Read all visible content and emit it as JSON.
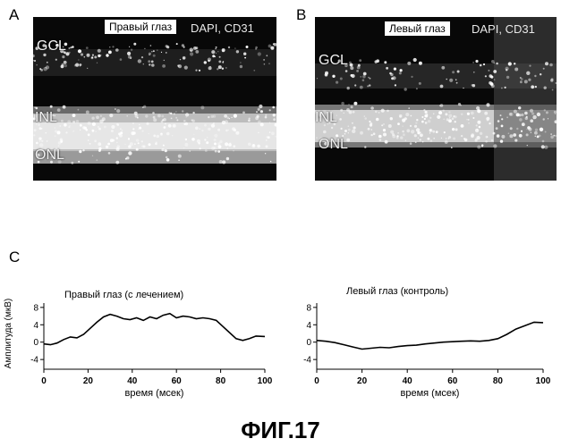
{
  "panels": {
    "A": {
      "letter": "A",
      "eye_label": "Правый глаз",
      "stain_label": "DAPI, CD31",
      "layers": [
        "GCL",
        "INL",
        "ONL"
      ]
    },
    "B": {
      "letter": "B",
      "eye_label": "Левый глаз",
      "stain_label": "DAPI, CD31",
      "layers": [
        "GCL",
        "INL",
        "ONL"
      ]
    },
    "C": {
      "letter": "C"
    }
  },
  "chart_data": [
    {
      "type": "line",
      "title": "Правый глаз (с лечением)",
      "xlabel": "время (мсек)",
      "ylabel": "Амплитуда (мкВ)",
      "xlim": [
        0,
        100
      ],
      "ylim": [
        -5,
        9
      ],
      "xticks": [
        0,
        20,
        40,
        60,
        80,
        100
      ],
      "yticks": [
        8,
        4,
        0,
        -4
      ],
      "series": [
        {
          "x": [
            0,
            3,
            6,
            9,
            12,
            15,
            18,
            21,
            24,
            27,
            30,
            33,
            36,
            39,
            42,
            45,
            48,
            51,
            54,
            57,
            60,
            63,
            66,
            69,
            72,
            75,
            78,
            81,
            84,
            87,
            90,
            93,
            96,
            100
          ],
          "values": [
            -0.4,
            -0.6,
            -0.2,
            0.6,
            1.2,
            1.0,
            1.8,
            3.2,
            4.6,
            5.8,
            6.4,
            6.0,
            5.4,
            5.2,
            5.6,
            5.0,
            5.8,
            5.4,
            6.2,
            6.6,
            5.6,
            6.0,
            5.8,
            5.4,
            5.6,
            5.4,
            5.0,
            3.6,
            2.2,
            0.8,
            0.4,
            0.8,
            1.4,
            1.3
          ]
        }
      ]
    },
    {
      "type": "line",
      "title": "Левый глаз (контроль)",
      "xlabel": "время (мсек)",
      "ylabel": "",
      "xlim": [
        0,
        100
      ],
      "ylim": [
        -5,
        9
      ],
      "xticks": [
        0,
        20,
        40,
        60,
        80,
        100
      ],
      "yticks": [
        8,
        4,
        0,
        -4
      ],
      "series": [
        {
          "x": [
            0,
            4,
            8,
            12,
            16,
            20,
            24,
            28,
            32,
            36,
            40,
            44,
            48,
            52,
            56,
            60,
            64,
            68,
            72,
            76,
            80,
            84,
            88,
            92,
            96,
            100
          ],
          "values": [
            0.4,
            0.2,
            -0.1,
            -0.6,
            -1.1,
            -1.6,
            -1.4,
            -1.2,
            -1.3,
            -1.0,
            -0.8,
            -0.7,
            -0.4,
            -0.2,
            0.0,
            0.1,
            0.2,
            0.3,
            0.2,
            0.4,
            0.8,
            1.8,
            3.0,
            3.8,
            4.6,
            4.5
          ]
        }
      ]
    }
  ],
  "caption": "ФИГ.17"
}
